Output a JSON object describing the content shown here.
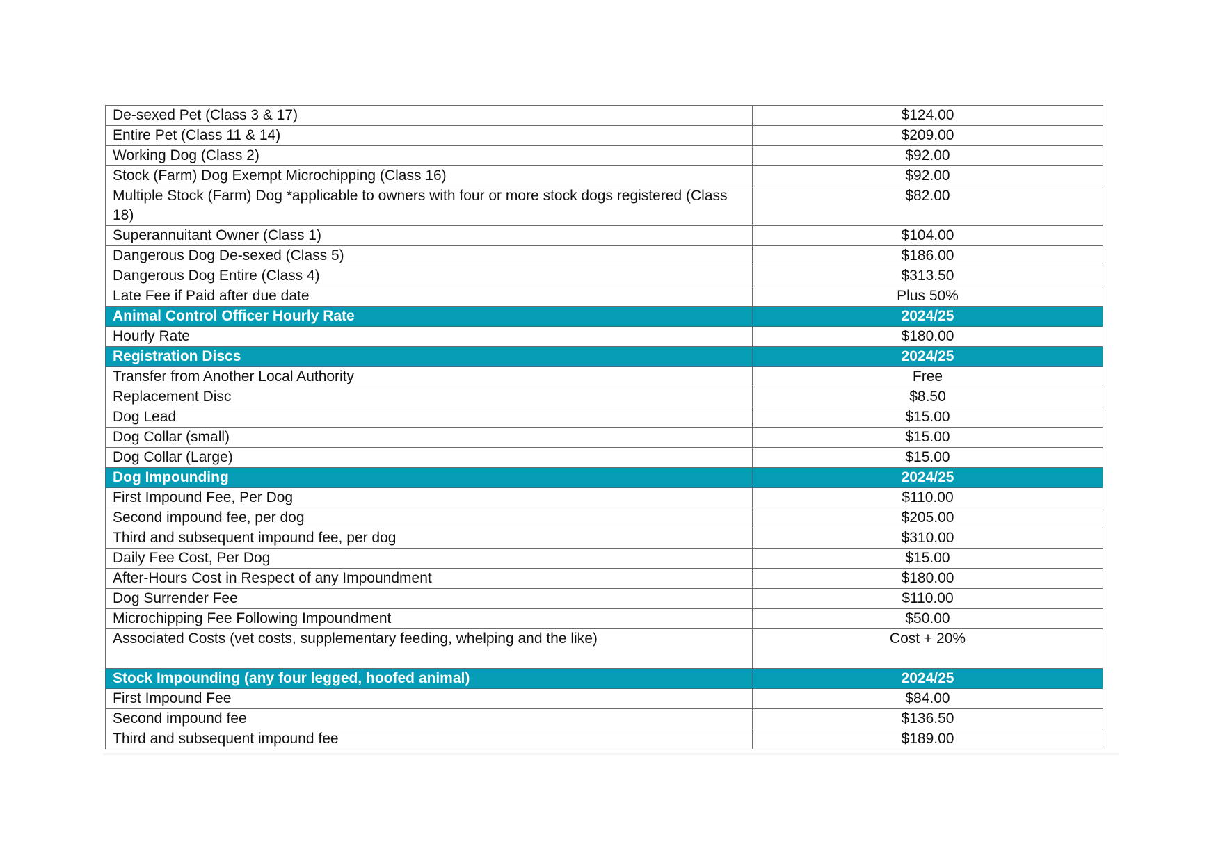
{
  "rows": [
    {
      "type": "item",
      "desc": "De-sexed Pet (Class 3 & 17)",
      "value": "$124.00"
    },
    {
      "type": "item",
      "desc": "Entire Pet (Class 11 & 14)",
      "value": "$209.00"
    },
    {
      "type": "item",
      "desc": "Working Dog (Class 2)",
      "value": "$92.00"
    },
    {
      "type": "item",
      "desc": "Stock (Farm) Dog Exempt Microchipping (Class 16)",
      "value": "$92.00"
    },
    {
      "type": "item",
      "desc": "Multiple Stock (Farm) Dog *applicable to owners with four or more stock dogs registered (Class 18)",
      "value": "$82.00"
    },
    {
      "type": "item",
      "desc": "Superannuitant Owner (Class 1)",
      "value": "$104.00"
    },
    {
      "type": "item",
      "desc": "Dangerous Dog De-sexed (Class 5)",
      "value": "$186.00"
    },
    {
      "type": "item",
      "desc": "Dangerous Dog Entire (Class 4)",
      "value": "$313.50"
    },
    {
      "type": "item",
      "desc": "Late Fee if Paid after due date",
      "value": "Plus 50%"
    },
    {
      "type": "section",
      "desc": "Animal Control Officer Hourly Rate",
      "value": "2024/25"
    },
    {
      "type": "item",
      "desc": "Hourly Rate",
      "value": "$180.00"
    },
    {
      "type": "section",
      "desc": "Registration Discs",
      "value": "2024/25"
    },
    {
      "type": "item",
      "desc": "Transfer from Another Local Authority",
      "value": "Free"
    },
    {
      "type": "item",
      "desc": "Replacement Disc",
      "value": "$8.50"
    },
    {
      "type": "item",
      "desc": "Dog Lead",
      "value": "$15.00"
    },
    {
      "type": "item",
      "desc": "Dog Collar (small)",
      "value": "$15.00"
    },
    {
      "type": "item",
      "desc": "Dog Collar (Large)",
      "value": "$15.00"
    },
    {
      "type": "section",
      "desc": "Dog Impounding",
      "value": "2024/25"
    },
    {
      "type": "item",
      "desc": "First Impound Fee, Per Dog",
      "value": "$110.00"
    },
    {
      "type": "item",
      "desc": "Second impound fee, per dog",
      "value": "$205.00"
    },
    {
      "type": "item",
      "desc": "Third and subsequent impound fee, per dog",
      "value": "$310.00"
    },
    {
      "type": "item",
      "desc": "Daily Fee Cost, Per Dog",
      "value": "$15.00"
    },
    {
      "type": "item",
      "desc": "After-Hours Cost in Respect of any Impoundment",
      "value": "$180.00"
    },
    {
      "type": "item",
      "desc": "Dog Surrender Fee",
      "value": "$110.00"
    },
    {
      "type": "item",
      "desc": "Microchipping Fee Following Impoundment",
      "value": "$50.00"
    },
    {
      "type": "item",
      "desc": "Associated Costs (vet costs, supplementary feeding, whelping and the like)",
      "value": "Cost + 20%"
    },
    {
      "type": "section",
      "desc": "Stock Impounding (any four legged, hoofed animal)",
      "value": "2024/25"
    },
    {
      "type": "item",
      "desc": "First Impound Fee",
      "value": "$84.00"
    },
    {
      "type": "item",
      "desc": "Second impound fee",
      "value": "$136.50"
    },
    {
      "type": "item",
      "desc": "Third and subsequent impound fee",
      "value": "$189.00"
    }
  ],
  "colors": {
    "section_background": "#049db5",
    "section_text": "#ffffff",
    "border": "#6b6b6b"
  }
}
